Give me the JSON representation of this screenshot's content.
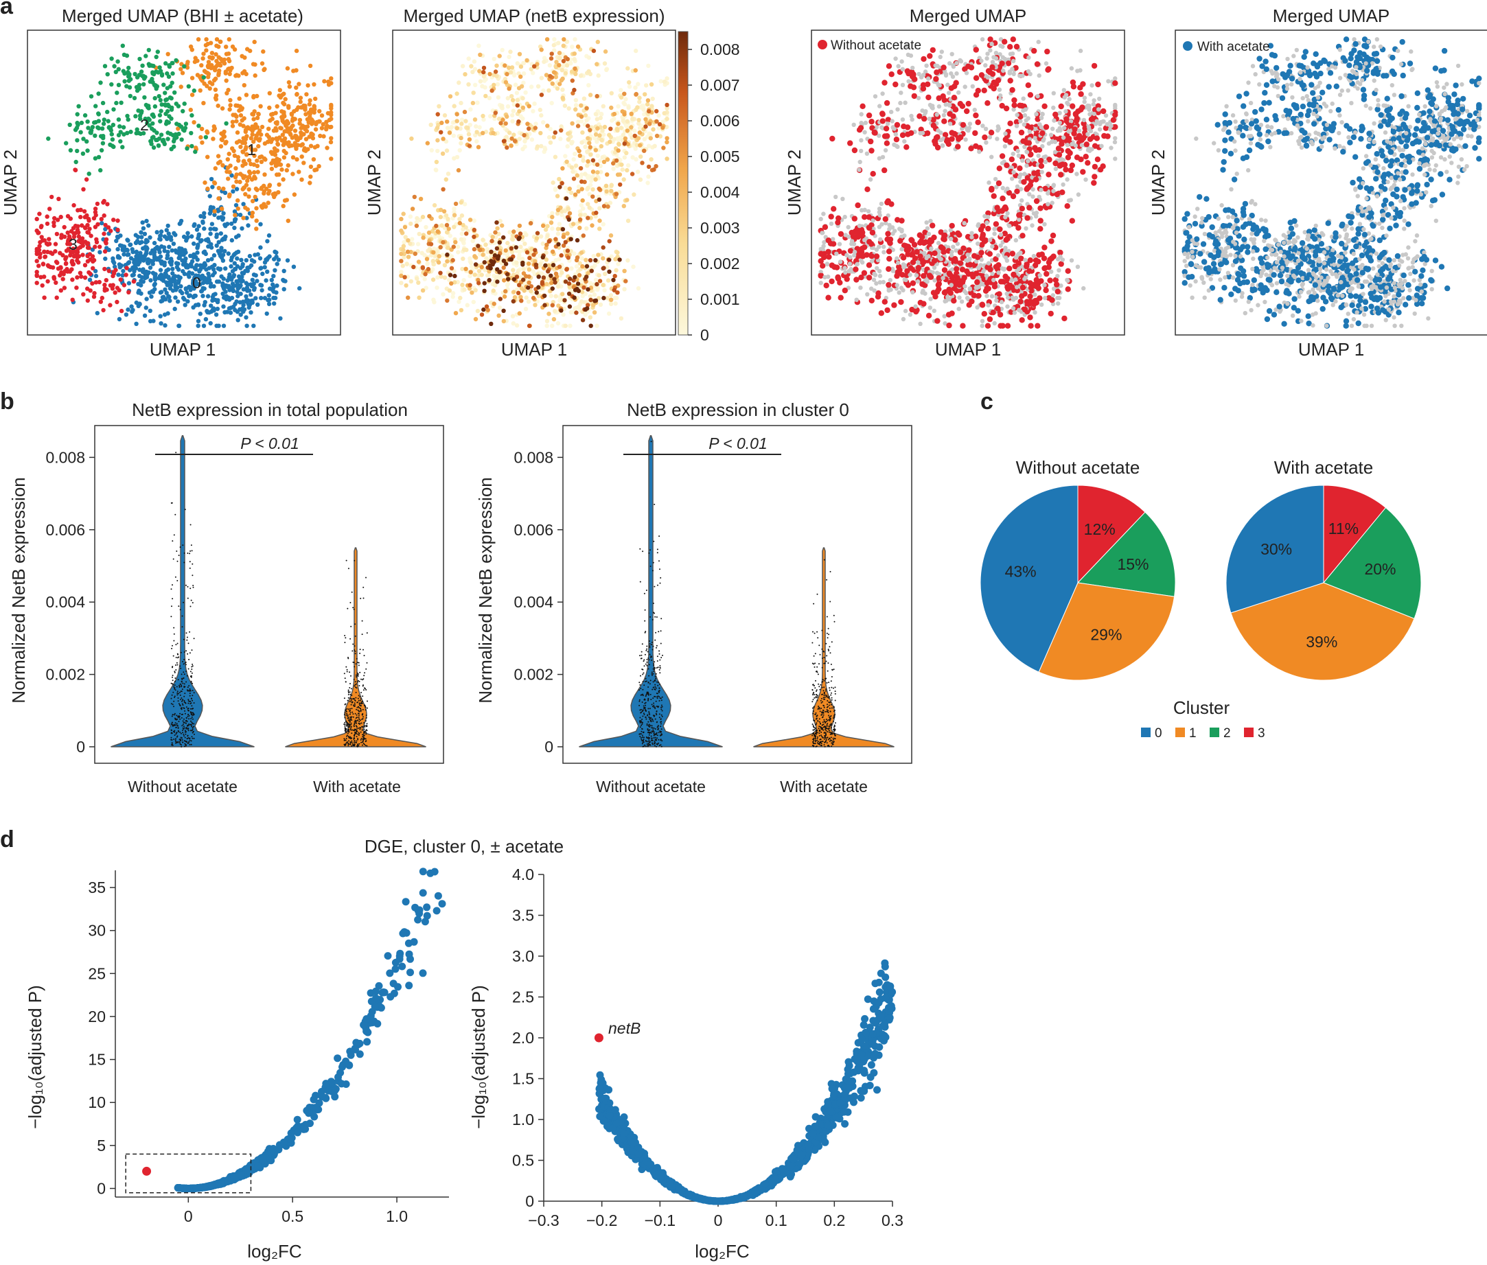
{
  "figure": {
    "panel_letters": [
      "a",
      "b",
      "c",
      "d"
    ]
  },
  "colors": {
    "cluster0": "#1f77b4",
    "cluster1": "#f08a24",
    "cluster2": "#1a9e5c",
    "cluster3": "#e0242f",
    "grey": "#c8c8c8",
    "volcano": "#1f77b4",
    "highlight": "#e0242f"
  },
  "chart_data": [
    {
      "id": "umap-clusters",
      "type": "scatter",
      "title": "Merged UMAP (BHI ± acetate)",
      "xlabel": "UMAP 1",
      "ylabel": "UMAP 2",
      "cluster_labels": [
        "0",
        "1",
        "2",
        "3"
      ]
    },
    {
      "id": "umap-netb",
      "type": "scatter",
      "title": "Merged UMAP (netB expression)",
      "xlabel": "UMAP 1",
      "ylabel": "UMAP 2",
      "colorbar": {
        "min": 0,
        "max": 0.0085,
        "ticks": [
          "0.008",
          "0.007",
          "0.006",
          "0.005",
          "0.004",
          "0.003",
          "0.002",
          "0.001",
          "0"
        ]
      }
    },
    {
      "id": "umap-without",
      "type": "scatter",
      "title": "Merged UMAP",
      "xlabel": "UMAP 1",
      "ylabel": "UMAP 2",
      "legend": "Without acetate"
    },
    {
      "id": "umap-with",
      "type": "scatter",
      "title": "Merged UMAP",
      "xlabel": "UMAP 1",
      "ylabel": "UMAP 2",
      "legend": "With acetate"
    },
    {
      "id": "violin-total",
      "type": "violin",
      "title": "NetB expression in total population",
      "ylabel": "Normalized NetB expression",
      "categories": [
        "Without acetate",
        "With acetate"
      ],
      "ylim": [
        0,
        0.0085
      ],
      "yticks": [
        "0",
        "0.002",
        "0.004",
        "0.006",
        "0.008"
      ],
      "max_values": [
        0.0086,
        0.0055
      ],
      "significance": "P < 0.01"
    },
    {
      "id": "violin-cluster0",
      "type": "violin",
      "title": "NetB expression in cluster 0",
      "ylabel": "Normalized NetB expression",
      "categories": [
        "Without acetate",
        "With acetate"
      ],
      "ylim": [
        0,
        0.0085
      ],
      "yticks": [
        "0",
        "0.002",
        "0.004",
        "0.006",
        "0.008"
      ],
      "max_values": [
        0.0086,
        0.0055
      ],
      "significance": "P < 0.01"
    },
    {
      "id": "pie-without",
      "type": "pie",
      "title": "Without acetate",
      "slices": [
        {
          "cluster": "3",
          "value": 12,
          "label": "12%"
        },
        {
          "cluster": "2",
          "value": 15,
          "label": "15%"
        },
        {
          "cluster": "1",
          "value": 29,
          "label": "29%"
        },
        {
          "cluster": "0",
          "value": 43,
          "label": "43%"
        }
      ]
    },
    {
      "id": "pie-with",
      "type": "pie",
      "title": "With acetate",
      "slices": [
        {
          "cluster": "3",
          "value": 11,
          "label": "11%"
        },
        {
          "cluster": "2",
          "value": 20,
          "label": "20%"
        },
        {
          "cluster": "1",
          "value": 39,
          "label": "39%"
        },
        {
          "cluster": "0",
          "value": 30,
          "label": "30%"
        }
      ]
    },
    {
      "id": "pie-legend",
      "type": "legend",
      "title": "Cluster",
      "entries": [
        "0",
        "1",
        "2",
        "3"
      ]
    },
    {
      "id": "volcano-full",
      "type": "scatter",
      "suptitle": "DGE, cluster 0, ± acetate",
      "xlabel": "log₂FC",
      "ylabel": "−log₁₀(adjusted P)",
      "xlim": [
        -0.35,
        1.25
      ],
      "ylim": [
        -1,
        37
      ],
      "xticks": [
        0,
        0.5,
        1.0
      ],
      "xtick_labels": [
        "0",
        "0.5",
        "1.0"
      ],
      "yticks": [
        0,
        5,
        10,
        15,
        20,
        25,
        30,
        35
      ],
      "ytick_labels": [
        "0",
        "5",
        "10",
        "15",
        "20",
        "25",
        "30",
        "35"
      ],
      "zoom_box": {
        "x": [
          -0.3,
          0.3
        ],
        "y": [
          -0.5,
          4
        ]
      },
      "highlight": {
        "x": -0.2,
        "y": 2.0
      }
    },
    {
      "id": "volcano-zoom",
      "type": "scatter",
      "xlabel": "log₂FC",
      "ylabel": "−log₁₀(adjusted P)",
      "xlim": [
        -0.3,
        0.3
      ],
      "ylim": [
        0,
        4.0
      ],
      "xticks": [
        -0.3,
        -0.2,
        -0.1,
        0,
        0.1,
        0.2,
        0.3
      ],
      "xtick_labels": [
        "−0.3",
        "−0.2",
        "−0.1",
        "0",
        "0.1",
        "0.2",
        "0.3"
      ],
      "yticks": [
        0,
        0.5,
        1.0,
        1.5,
        2.0,
        2.5,
        3.0,
        3.5,
        4.0
      ],
      "ytick_labels": [
        "0",
        "0.5",
        "1.0",
        "1.5",
        "2.0",
        "2.5",
        "3.0",
        "3.5",
        "4.0"
      ],
      "highlight": {
        "x": -0.205,
        "y": 2.0,
        "label": "netB"
      }
    }
  ]
}
